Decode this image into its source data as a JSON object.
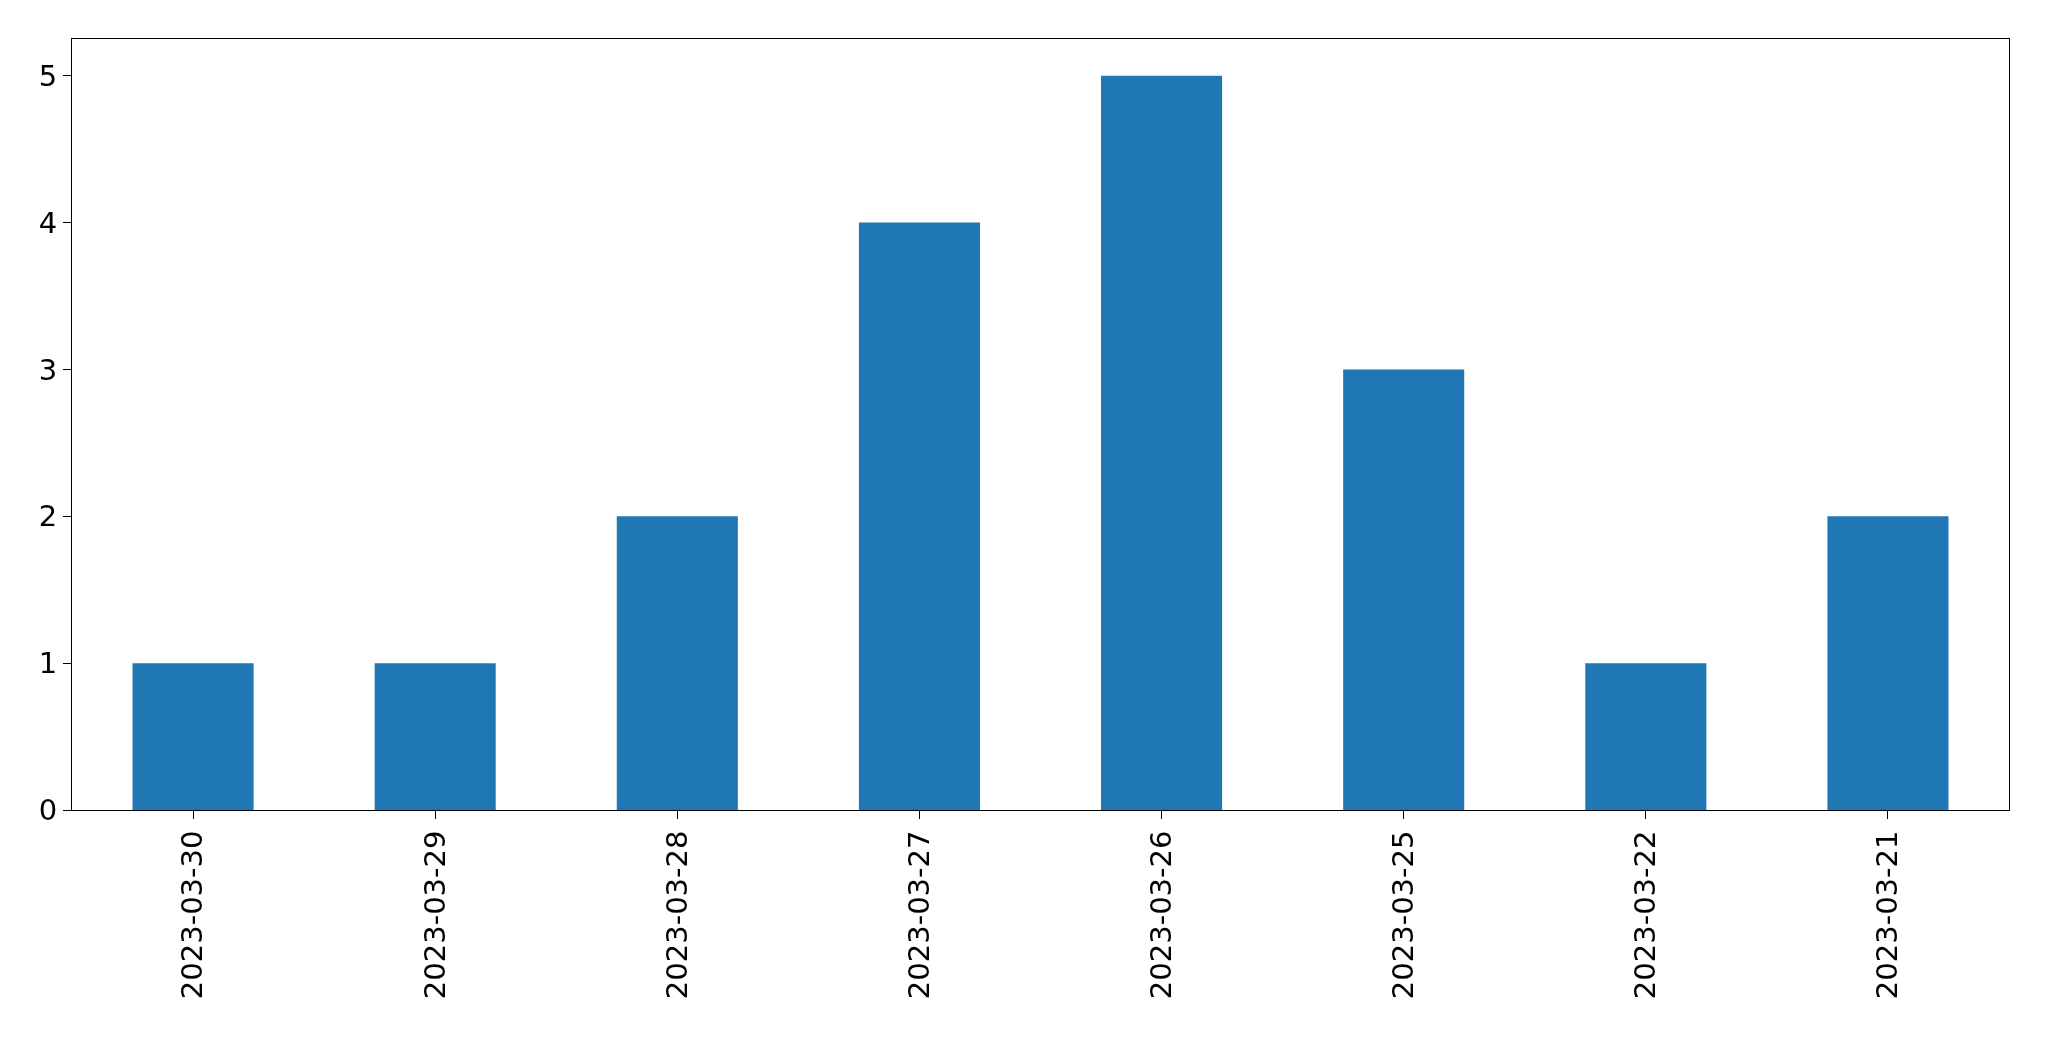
{
  "chart_data": {
    "type": "bar",
    "categories": [
      "2023-03-30",
      "2023-03-29",
      "2023-03-28",
      "2023-03-27",
      "2023-03-26",
      "2023-03-25",
      "2023-03-22",
      "2023-03-21"
    ],
    "values": [
      1,
      1,
      2,
      4,
      5,
      3,
      1,
      2
    ],
    "color": "#1f77b4",
    "ylim": [
      0,
      5.25
    ],
    "yticks": [
      0,
      1,
      2,
      3,
      4,
      5
    ]
  }
}
